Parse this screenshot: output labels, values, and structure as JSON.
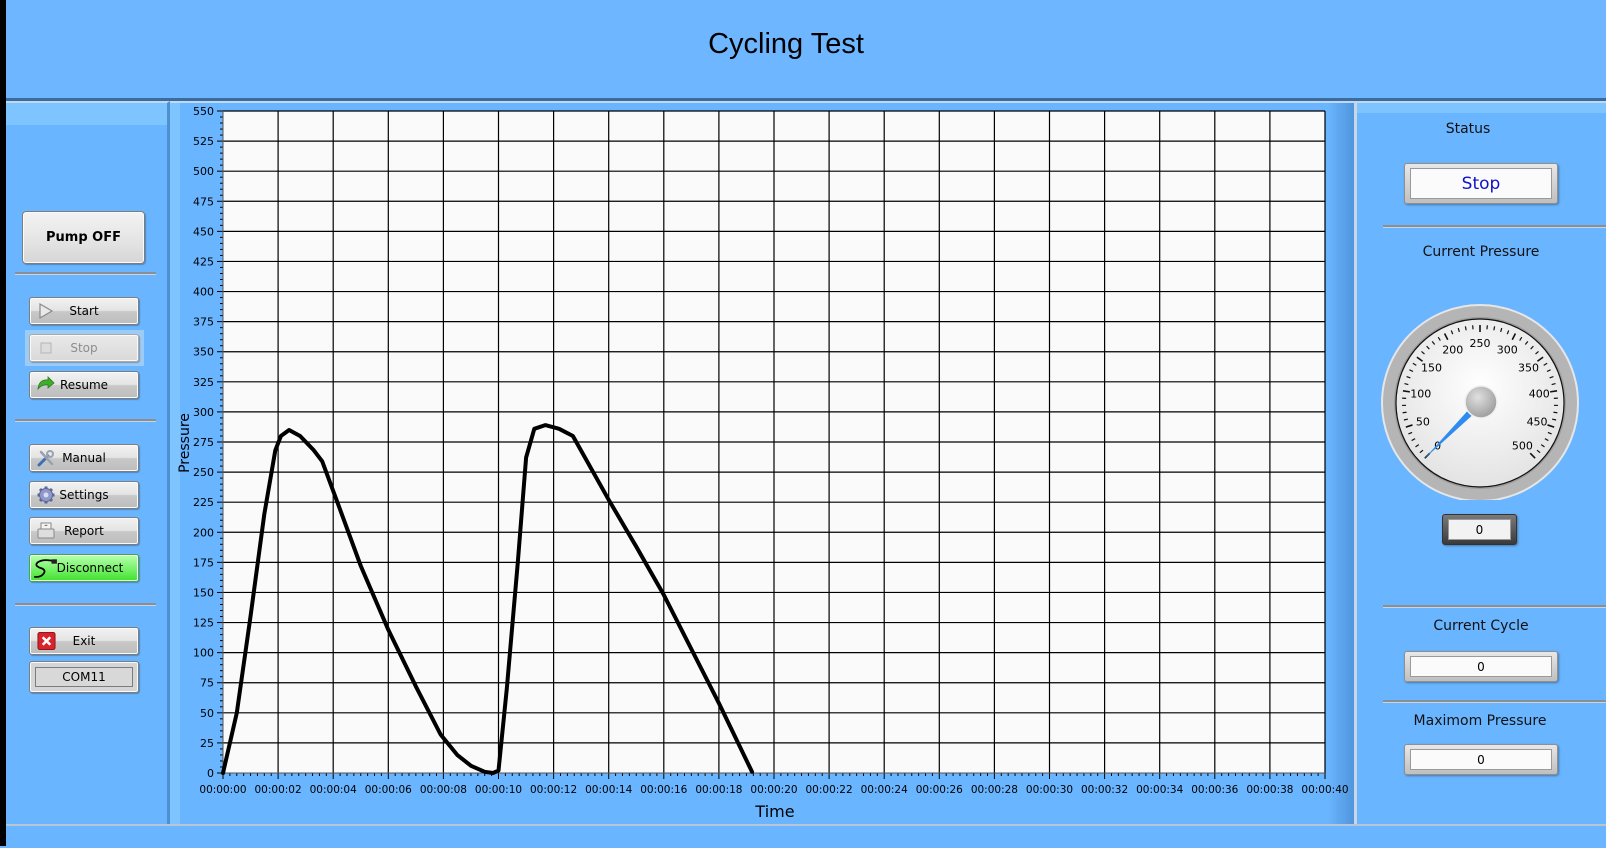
{
  "header": {
    "title": "Cycling Test"
  },
  "left_panel": {
    "pump_button": "Pump OFF",
    "controls": [
      {
        "id": "start",
        "label": "Start",
        "icon": "play-icon",
        "enabled": true
      },
      {
        "id": "stop",
        "label": "Stop",
        "icon": "stop-square-icon",
        "enabled": false
      },
      {
        "id": "resume",
        "label": "Resume",
        "icon": "resume-arrow-icon",
        "enabled": true
      }
    ],
    "tools": [
      {
        "id": "manual",
        "label": "Manual",
        "icon": "tools-icon"
      },
      {
        "id": "settings",
        "label": "Settings",
        "icon": "gear-icon"
      },
      {
        "id": "report",
        "label": "Report",
        "icon": "printer-icon"
      },
      {
        "id": "disconnect",
        "label": "Disconnect",
        "icon": "cable-icon",
        "color": "#5ae84a"
      }
    ],
    "exit_button": "Exit",
    "port": "COM11"
  },
  "right_panel": {
    "status_label": "Status",
    "status_value": "Stop",
    "status_color": "#1010c8",
    "current_pressure_label": "Current Pressure",
    "gauge": {
      "min": 0,
      "max": 500,
      "value": 0,
      "major_ticks": [
        "0",
        "50",
        "100",
        "150",
        "200",
        "250",
        "300",
        "350",
        "400",
        "450",
        "500"
      ],
      "needle_color": "#2e8bf0"
    },
    "current_pressure_value": "0",
    "current_cycle_label": "Current Cycle",
    "current_cycle_value": "0",
    "max_pressure_label": "Maximom Pressure",
    "max_pressure_value": "0"
  },
  "chart_data": {
    "type": "line",
    "title": "",
    "xlabel": "Time",
    "ylabel": "Pressure",
    "xlim": [
      0,
      40
    ],
    "ylim": [
      0,
      550
    ],
    "grid": true,
    "x_tick_labels": [
      "00:00:00",
      "00:00:02",
      "00:00:04",
      "00:00:06",
      "00:00:08",
      "00:00:10",
      "00:00:12",
      "00:00:14",
      "00:00:16",
      "00:00:18",
      "00:00:20",
      "00:00:22",
      "00:00:24",
      "00:00:26",
      "00:00:28",
      "00:00:30",
      "00:00:32",
      "00:00:34",
      "00:00:36",
      "00:00:38",
      "00:00:40"
    ],
    "y_tick_labels": [
      "0",
      "25",
      "50",
      "75",
      "100",
      "125",
      "150",
      "175",
      "200",
      "225",
      "250",
      "275",
      "300",
      "325",
      "350",
      "375",
      "400",
      "425",
      "450",
      "475",
      "500",
      "525",
      "550"
    ],
    "series": [
      {
        "name": "Pressure",
        "color": "#000000",
        "x": [
          0,
          0.5,
          1.0,
          1.5,
          1.9,
          2.1,
          2.4,
          2.8,
          3.3,
          3.6,
          4.2,
          5.0,
          6.0,
          7.0,
          7.9,
          8.5,
          9.0,
          9.5,
          9.8,
          10.0,
          10.3,
          10.7,
          11.0,
          11.3,
          11.7,
          12.2,
          12.7,
          14.0,
          15.0,
          16.0,
          17.0,
          18.0,
          19.2
        ],
        "values": [
          0,
          50,
          130,
          215,
          268,
          280,
          285,
          280,
          268,
          259,
          222,
          172,
          119,
          72,
          32,
          15,
          6,
          1,
          0,
          2,
          70,
          175,
          262,
          286,
          289,
          286,
          280,
          227,
          188,
          148,
          103,
          58,
          1
        ]
      }
    ]
  }
}
